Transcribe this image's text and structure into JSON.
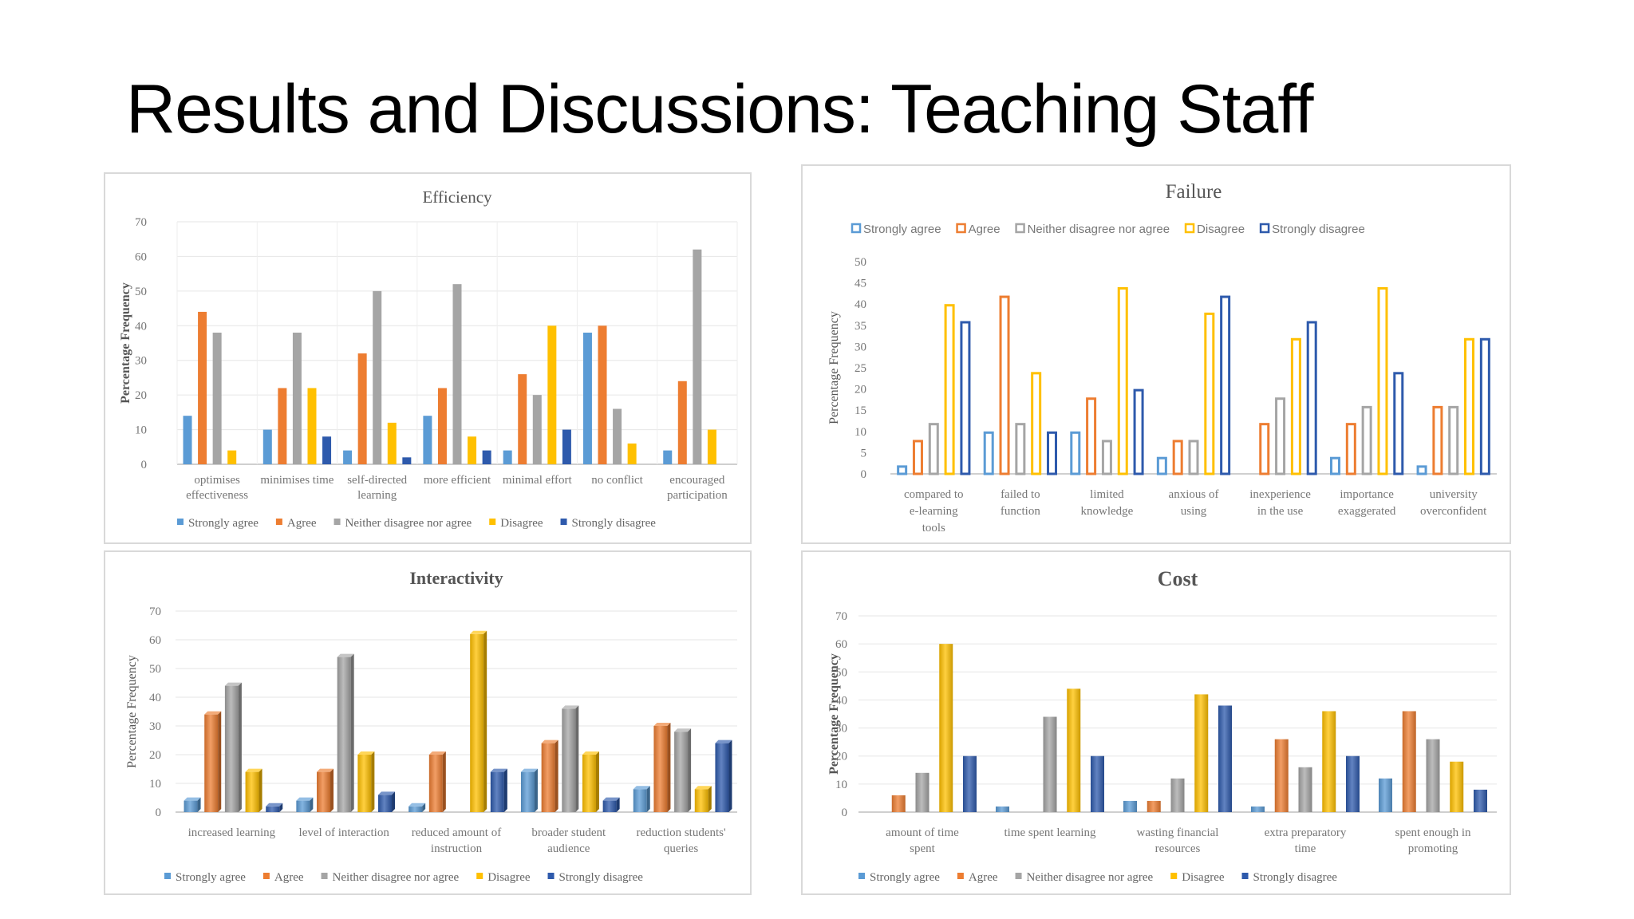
{
  "slide": {
    "title": "Results and Discussions: Teaching Staff"
  },
  "colors": {
    "strongly_agree": "#5B9BD5",
    "agree": "#ED7D31",
    "neither": "#A5A5A5",
    "disagree": "#FFC000",
    "strongly_disagree": "#2E5AAC"
  },
  "chart_data": [
    {
      "id": "efficiency",
      "type": "bar",
      "style": "flat",
      "title": "Efficiency",
      "ylabel": "Percentage Frequency",
      "ylim": [
        0,
        70
      ],
      "yticks": [
        0,
        10,
        20,
        30,
        40,
        50,
        60,
        70
      ],
      "grid": true,
      "legend": "bottom",
      "categories": [
        [
          "optimises",
          "effectiveness"
        ],
        [
          "minimises time"
        ],
        [
          "self-directed",
          "learning"
        ],
        [
          "more efficient"
        ],
        [
          "minimal effort"
        ],
        [
          "no conflict"
        ],
        [
          "encouraged",
          "participation"
        ]
      ],
      "series": [
        {
          "name": "Strongly agree",
          "color": "#5B9BD5",
          "values": [
            14,
            10,
            4,
            14,
            4,
            38,
            4
          ]
        },
        {
          "name": "Agree",
          "color": "#ED7D31",
          "values": [
            44,
            22,
            32,
            22,
            26,
            40,
            24
          ]
        },
        {
          "name": "Neither disagree nor agree",
          "color": "#A5A5A5",
          "values": [
            38,
            38,
            50,
            52,
            20,
            16,
            62
          ]
        },
        {
          "name": "Disagree",
          "color": "#FFC000",
          "values": [
            4,
            22,
            12,
            8,
            40,
            6,
            10
          ]
        },
        {
          "name": "Strongly disagree",
          "color": "#2E5AAC",
          "values": [
            0,
            8,
            2,
            4,
            10,
            0,
            0
          ]
        }
      ]
    },
    {
      "id": "failure",
      "type": "bar",
      "style": "outline",
      "title": "Failure",
      "ylabel": "Percentage Frequency",
      "ylim": [
        0,
        50
      ],
      "yticks": [
        0,
        5,
        10,
        15,
        20,
        25,
        30,
        35,
        40,
        45,
        50
      ],
      "grid": false,
      "legend": "top",
      "categories": [
        [
          "compared to",
          "e-learning",
          "tools"
        ],
        [
          "failed to",
          "function"
        ],
        [
          "limited",
          "knowledge"
        ],
        [
          "anxious of",
          "using"
        ],
        [
          "inexperience",
          "in the use"
        ],
        [
          "importance",
          "exaggerated"
        ],
        [
          "university",
          "overconfident"
        ]
      ],
      "series": [
        {
          "name": "Strongly agree",
          "color": "#5B9BD5",
          "values": [
            2,
            10,
            10,
            4,
            0,
            4,
            2
          ]
        },
        {
          "name": "Agree",
          "color": "#ED7D31",
          "values": [
            8,
            42,
            18,
            8,
            12,
            12,
            16
          ]
        },
        {
          "name": "Neither disagree nor agree",
          "color": "#A5A5A5",
          "values": [
            12,
            12,
            8,
            8,
            18,
            16,
            16
          ]
        },
        {
          "name": "Disagree",
          "color": "#FFC000",
          "values": [
            40,
            24,
            44,
            38,
            32,
            44,
            32
          ]
        },
        {
          "name": "Strongly disagree",
          "color": "#2E5AAC",
          "values": [
            36,
            10,
            20,
            42,
            36,
            24,
            32
          ]
        }
      ]
    },
    {
      "id": "interactivity",
      "type": "bar",
      "style": "3d",
      "title": "Interactivity",
      "ylabel": "Percentage Frequency",
      "ylim": [
        0,
        70
      ],
      "yticks": [
        0,
        10,
        20,
        30,
        40,
        50,
        60,
        70
      ],
      "grid": true,
      "legend": "bottom",
      "categories": [
        [
          "increased learning"
        ],
        [
          "level of interaction"
        ],
        [
          "reduced amount of",
          "instruction"
        ],
        [
          "broader student",
          "audience"
        ],
        [
          "reduction students'",
          "queries"
        ]
      ],
      "series": [
        {
          "name": "Strongly agree",
          "color": "#5B9BD5",
          "values": [
            4,
            4,
            2,
            14,
            8
          ]
        },
        {
          "name": "Agree",
          "color": "#ED7D31",
          "values": [
            34,
            14,
            20,
            24,
            30
          ]
        },
        {
          "name": "Neither disagree nor agree",
          "color": "#A5A5A5",
          "values": [
            44,
            54,
            0,
            36,
            28
          ]
        },
        {
          "name": "Disagree",
          "color": "#FFC000",
          "values": [
            14,
            20,
            62,
            20,
            8
          ]
        },
        {
          "name": "Strongly disagree",
          "color": "#2E5AAC",
          "values": [
            2,
            6,
            14,
            4,
            24
          ]
        }
      ]
    },
    {
      "id": "cost",
      "type": "bar",
      "style": "gradient",
      "title": "Cost",
      "ylabel": "Percentage Frequency",
      "ylim": [
        0,
        70
      ],
      "yticks": [
        0,
        10,
        20,
        30,
        40,
        50,
        60,
        70
      ],
      "grid": true,
      "legend": "bottom",
      "categories": [
        [
          "amount of time",
          "spent"
        ],
        [
          "time spent learning"
        ],
        [
          "wasting financial",
          "resources"
        ],
        [
          "extra preparatory",
          "time"
        ],
        [
          "spent enough in",
          "promoting"
        ]
      ],
      "series": [
        {
          "name": "Strongly agree",
          "color": "#5B9BD5",
          "values": [
            0,
            2,
            4,
            2,
            12
          ]
        },
        {
          "name": "Agree",
          "color": "#ED7D31",
          "values": [
            6,
            0,
            4,
            26,
            36
          ]
        },
        {
          "name": "Neither disagree nor agree",
          "color": "#A5A5A5",
          "values": [
            14,
            34,
            12,
            16,
            26
          ]
        },
        {
          "name": "Disagree",
          "color": "#FFC000",
          "values": [
            60,
            44,
            42,
            36,
            18
          ]
        },
        {
          "name": "Strongly disagree",
          "color": "#2E5AAC",
          "values": [
            20,
            20,
            38,
            20,
            8
          ]
        }
      ]
    }
  ]
}
